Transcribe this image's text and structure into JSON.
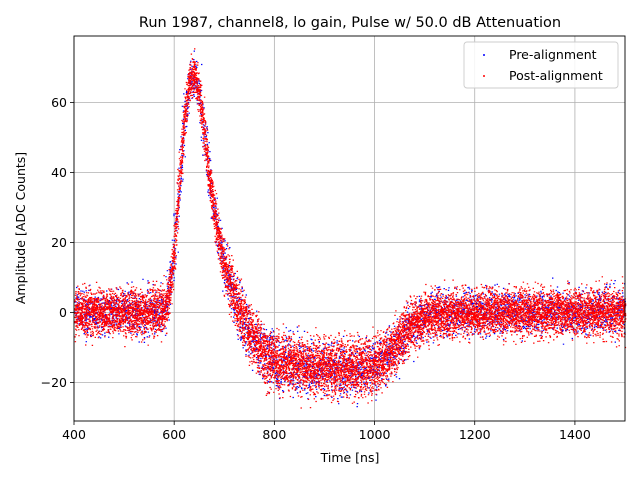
{
  "chart_data": {
    "type": "scatter",
    "title": "Run 1987, channel8, lo gain, Pulse w/ 50.0 dB Attenuation",
    "xlabel": "Time [ns]",
    "ylabel": "Amplitude [ADC Counts]",
    "xlim": [
      400,
      1500
    ],
    "ylim": [
      -31,
      79
    ],
    "xticks": [
      400,
      600,
      800,
      1000,
      1200,
      1400
    ],
    "yticks": [
      -20,
      0,
      20,
      40,
      60
    ],
    "ytick_labels": [
      "−20",
      "0",
      "20",
      "40",
      "60"
    ],
    "grid": true,
    "legend_position": "top-right",
    "series": [
      {
        "name": "Pre-alignment",
        "color": "#0000ff",
        "marker": "point",
        "description": "Many overlaid pulse waveforms before alignment",
        "envelope": {
          "x": [
            400,
            560,
            580,
            590,
            600,
            610,
            620,
            630,
            640,
            650,
            660,
            670,
            680,
            690,
            700,
            720,
            740,
            760,
            780,
            800,
            850,
            900,
            950,
            1000,
            1020,
            1040,
            1060,
            1080,
            1100,
            1150,
            1200,
            1300,
            1400,
            1500
          ],
          "center": [
            0,
            0,
            1,
            6,
            18,
            38,
            56,
            66,
            68,
            62,
            50,
            38,
            28,
            20,
            13,
            4,
            -3,
            -8,
            -12,
            -14,
            -15.5,
            -16,
            -16,
            -15,
            -13,
            -10,
            -6,
            -3,
            -1,
            0,
            0,
            0,
            0,
            0
          ],
          "spread": [
            6.5,
            6.5,
            6.5,
            6,
            6,
            6,
            6,
            6,
            6,
            6,
            6,
            6,
            6,
            6,
            7,
            8,
            8,
            8,
            8,
            8,
            8,
            8,
            8,
            8,
            7.5,
            7.5,
            7,
            7,
            7,
            6.5,
            6.5,
            6.5,
            6.5,
            6.5
          ]
        }
      },
      {
        "name": "Post-alignment",
        "color": "#ff0000",
        "marker": "point",
        "description": "Same waveforms after time alignment"
      }
    ]
  }
}
